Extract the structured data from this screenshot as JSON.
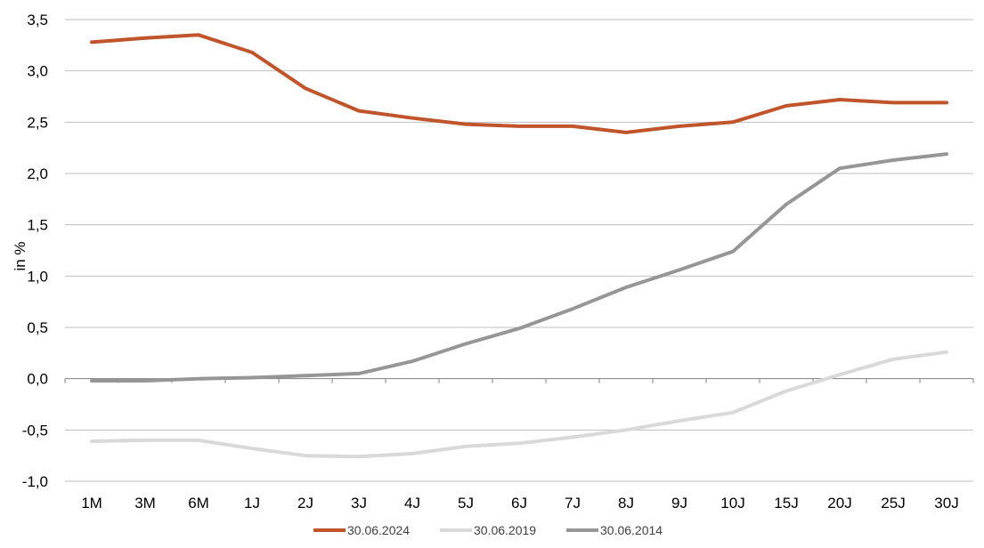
{
  "chart_data": {
    "type": "line",
    "title": "",
    "xlabel": "",
    "ylabel": "in %",
    "ylim": [
      -1.0,
      3.5
    ],
    "yticks": [
      "-1,0",
      "-0,5",
      "0,0",
      "0,5",
      "1,0",
      "1,5",
      "2,0",
      "2,5",
      "3,0",
      "3,5"
    ],
    "grid": true,
    "legend_position": "bottom",
    "categories": [
      "1M",
      "3M",
      "6M",
      "1J",
      "2J",
      "3J",
      "4J",
      "5J",
      "6J",
      "7J",
      "8J",
      "9J",
      "10J",
      "15J",
      "20J",
      "25J",
      "30J"
    ],
    "series": [
      {
        "name": "30.06.2024",
        "color": "#C0552B",
        "values": [
          3.28,
          3.32,
          3.35,
          3.18,
          2.83,
          2.61,
          2.54,
          2.48,
          2.46,
          2.46,
          2.4,
          2.46,
          2.5,
          2.66,
          2.72,
          2.69,
          2.69
        ]
      },
      {
        "name": "30.06.2019",
        "color": "#D9D9D9",
        "values": [
          -0.61,
          -0.6,
          -0.6,
          -0.68,
          -0.75,
          -0.76,
          -0.73,
          -0.66,
          -0.63,
          -0.57,
          -0.5,
          -0.41,
          -0.33,
          -0.12,
          0.04,
          0.19,
          0.26
        ]
      },
      {
        "name": "30.06.2014",
        "color": "#969696",
        "values": [
          -0.02,
          -0.02,
          0.0,
          0.01,
          0.03,
          0.05,
          0.17,
          0.34,
          0.49,
          0.68,
          0.89,
          1.06,
          1.24,
          1.7,
          2.05,
          2.13,
          2.19
        ]
      }
    ]
  }
}
